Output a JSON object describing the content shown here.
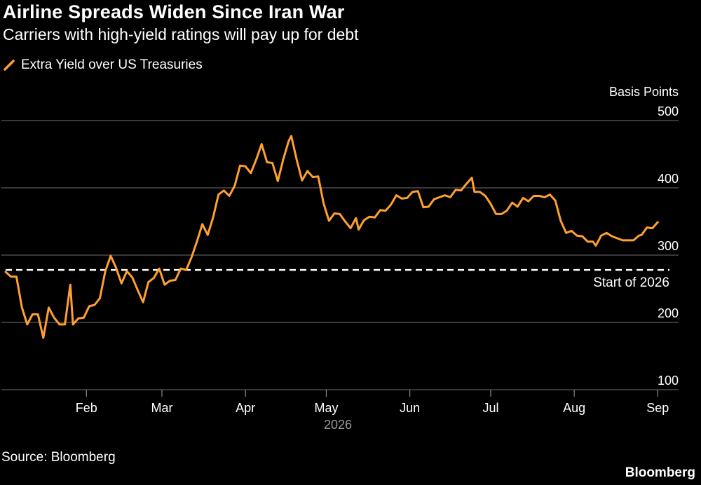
{
  "chart_data": {
    "type": "line",
    "title": "Airline Spreads Widen Since Iran War",
    "subtitle": "Carriers with high-yield ratings will pay up for debt",
    "ylabel": "Basis Points",
    "xlabel": "2026",
    "ylim": [
      100,
      500
    ],
    "yticks": [
      100,
      200,
      300,
      400,
      500
    ],
    "grid": true,
    "x_range": [
      "2026-01-02",
      "2026-09-03"
    ],
    "x_ticks": [
      {
        "date": "2026-02-01",
        "label": "Feb"
      },
      {
        "date": "2026-03-01",
        "label": "Mar"
      },
      {
        "date": "2026-04-01",
        "label": "Apr"
      },
      {
        "date": "2026-05-01",
        "label": "May"
      },
      {
        "date": "2026-06-01",
        "label": "Jun"
      },
      {
        "date": "2026-07-01",
        "label": "Jul"
      },
      {
        "date": "2026-08-01",
        "label": "Aug"
      },
      {
        "date": "2026-09-01",
        "label": "Sep"
      }
    ],
    "year_label": "2026",
    "legend_position": "top-left",
    "reference_line": {
      "value": 278,
      "label": "Start of 2026",
      "style": "dashed",
      "color": "#ffffff"
    },
    "series": [
      {
        "name": "Extra Yield over US Treasuries",
        "color": "#ffa033",
        "points": [
          [
            "2026-01-02",
            275
          ],
          [
            "2026-01-04",
            268
          ],
          [
            "2026-01-06",
            268
          ],
          [
            "2026-01-08",
            223
          ],
          [
            "2026-01-10",
            197
          ],
          [
            "2026-01-12",
            212
          ],
          [
            "2026-01-14",
            212
          ],
          [
            "2026-01-16",
            177
          ],
          [
            "2026-01-18",
            222
          ],
          [
            "2026-01-20",
            207
          ],
          [
            "2026-01-22",
            197
          ],
          [
            "2026-01-24",
            197
          ],
          [
            "2026-01-26",
            256
          ],
          [
            "2026-01-27",
            197
          ],
          [
            "2026-01-29",
            206
          ],
          [
            "2026-01-31",
            207
          ],
          [
            "2026-02-02",
            224
          ],
          [
            "2026-02-04",
            226
          ],
          [
            "2026-02-06",
            236
          ],
          [
            "2026-02-08",
            276
          ],
          [
            "2026-02-10",
            299
          ],
          [
            "2026-02-12",
            281
          ],
          [
            "2026-02-14",
            258
          ],
          [
            "2026-02-16",
            276
          ],
          [
            "2026-02-18",
            267
          ],
          [
            "2026-02-20",
            248
          ],
          [
            "2026-02-22",
            230
          ],
          [
            "2026-02-24",
            260
          ],
          [
            "2026-02-26",
            266
          ],
          [
            "2026-02-28",
            280
          ],
          [
            "2026-03-02",
            256
          ],
          [
            "2026-03-04",
            262
          ],
          [
            "2026-03-06",
            263
          ],
          [
            "2026-03-08",
            280
          ],
          [
            "2026-03-10",
            278
          ],
          [
            "2026-03-12",
            297
          ],
          [
            "2026-03-14",
            320
          ],
          [
            "2026-03-16",
            346
          ],
          [
            "2026-03-18",
            330
          ],
          [
            "2026-03-20",
            356
          ],
          [
            "2026-03-22",
            390
          ],
          [
            "2026-03-24",
            396
          ],
          [
            "2026-03-26",
            388
          ],
          [
            "2026-03-28",
            403
          ],
          [
            "2026-03-30",
            433
          ],
          [
            "2026-04-01",
            432
          ],
          [
            "2026-04-03",
            422
          ],
          [
            "2026-04-05",
            442
          ],
          [
            "2026-04-07",
            465
          ],
          [
            "2026-04-09",
            438
          ],
          [
            "2026-04-11",
            437
          ],
          [
            "2026-04-13",
            410
          ],
          [
            "2026-04-15",
            442
          ],
          [
            "2026-04-17",
            469
          ],
          [
            "2026-04-18",
            477
          ],
          [
            "2026-04-20",
            442
          ],
          [
            "2026-04-22",
            411
          ],
          [
            "2026-04-24",
            425
          ],
          [
            "2026-04-26",
            416
          ],
          [
            "2026-04-28",
            417
          ],
          [
            "2026-04-30",
            377
          ],
          [
            "2026-05-02",
            351
          ],
          [
            "2026-05-04",
            362
          ],
          [
            "2026-05-06",
            361
          ],
          [
            "2026-05-08",
            350
          ],
          [
            "2026-05-10",
            340
          ],
          [
            "2026-05-12",
            355
          ],
          [
            "2026-05-13",
            338
          ],
          [
            "2026-05-15",
            352
          ],
          [
            "2026-05-17",
            357
          ],
          [
            "2026-05-19",
            356
          ],
          [
            "2026-05-21",
            367
          ],
          [
            "2026-05-23",
            366
          ],
          [
            "2026-05-25",
            375
          ],
          [
            "2026-05-27",
            389
          ],
          [
            "2026-05-29",
            384
          ],
          [
            "2026-05-31",
            385
          ],
          [
            "2026-06-02",
            394
          ],
          [
            "2026-06-04",
            395
          ],
          [
            "2026-06-06",
            371
          ],
          [
            "2026-06-08",
            372
          ],
          [
            "2026-06-10",
            383
          ],
          [
            "2026-06-12",
            386
          ],
          [
            "2026-06-14",
            389
          ],
          [
            "2026-06-16",
            386
          ],
          [
            "2026-06-18",
            397
          ],
          [
            "2026-06-20",
            396
          ],
          [
            "2026-06-22",
            406
          ],
          [
            "2026-06-24",
            415
          ],
          [
            "2026-06-25",
            394
          ],
          [
            "2026-06-27",
            394
          ],
          [
            "2026-06-29",
            388
          ],
          [
            "2026-07-01",
            376
          ],
          [
            "2026-07-03",
            361
          ],
          [
            "2026-07-05",
            361
          ],
          [
            "2026-07-07",
            366
          ],
          [
            "2026-07-09",
            378
          ],
          [
            "2026-07-11",
            372
          ],
          [
            "2026-07-13",
            385
          ],
          [
            "2026-07-15",
            380
          ],
          [
            "2026-07-17",
            388
          ],
          [
            "2026-07-19",
            388
          ],
          [
            "2026-07-21",
            386
          ],
          [
            "2026-07-23",
            390
          ],
          [
            "2026-07-25",
            381
          ],
          [
            "2026-07-27",
            351
          ],
          [
            "2026-07-29",
            333
          ],
          [
            "2026-07-31",
            336
          ],
          [
            "2026-08-02",
            329
          ],
          [
            "2026-08-04",
            328
          ],
          [
            "2026-08-06",
            320
          ],
          [
            "2026-08-08",
            320
          ],
          [
            "2026-08-09",
            314
          ],
          [
            "2026-08-11",
            329
          ],
          [
            "2026-08-13",
            333
          ],
          [
            "2026-08-15",
            328
          ],
          [
            "2026-08-17",
            325
          ],
          [
            "2026-08-19",
            322
          ],
          [
            "2026-08-21",
            322
          ],
          [
            "2026-08-23",
            322
          ],
          [
            "2026-08-25",
            329
          ],
          [
            "2026-08-26",
            330
          ],
          [
            "2026-08-28",
            341
          ],
          [
            "2026-08-30",
            340
          ],
          [
            "2026-09-01",
            349
          ]
        ]
      }
    ]
  },
  "footer": {
    "source": "Source: Bloomberg",
    "brand": "Bloomberg"
  }
}
